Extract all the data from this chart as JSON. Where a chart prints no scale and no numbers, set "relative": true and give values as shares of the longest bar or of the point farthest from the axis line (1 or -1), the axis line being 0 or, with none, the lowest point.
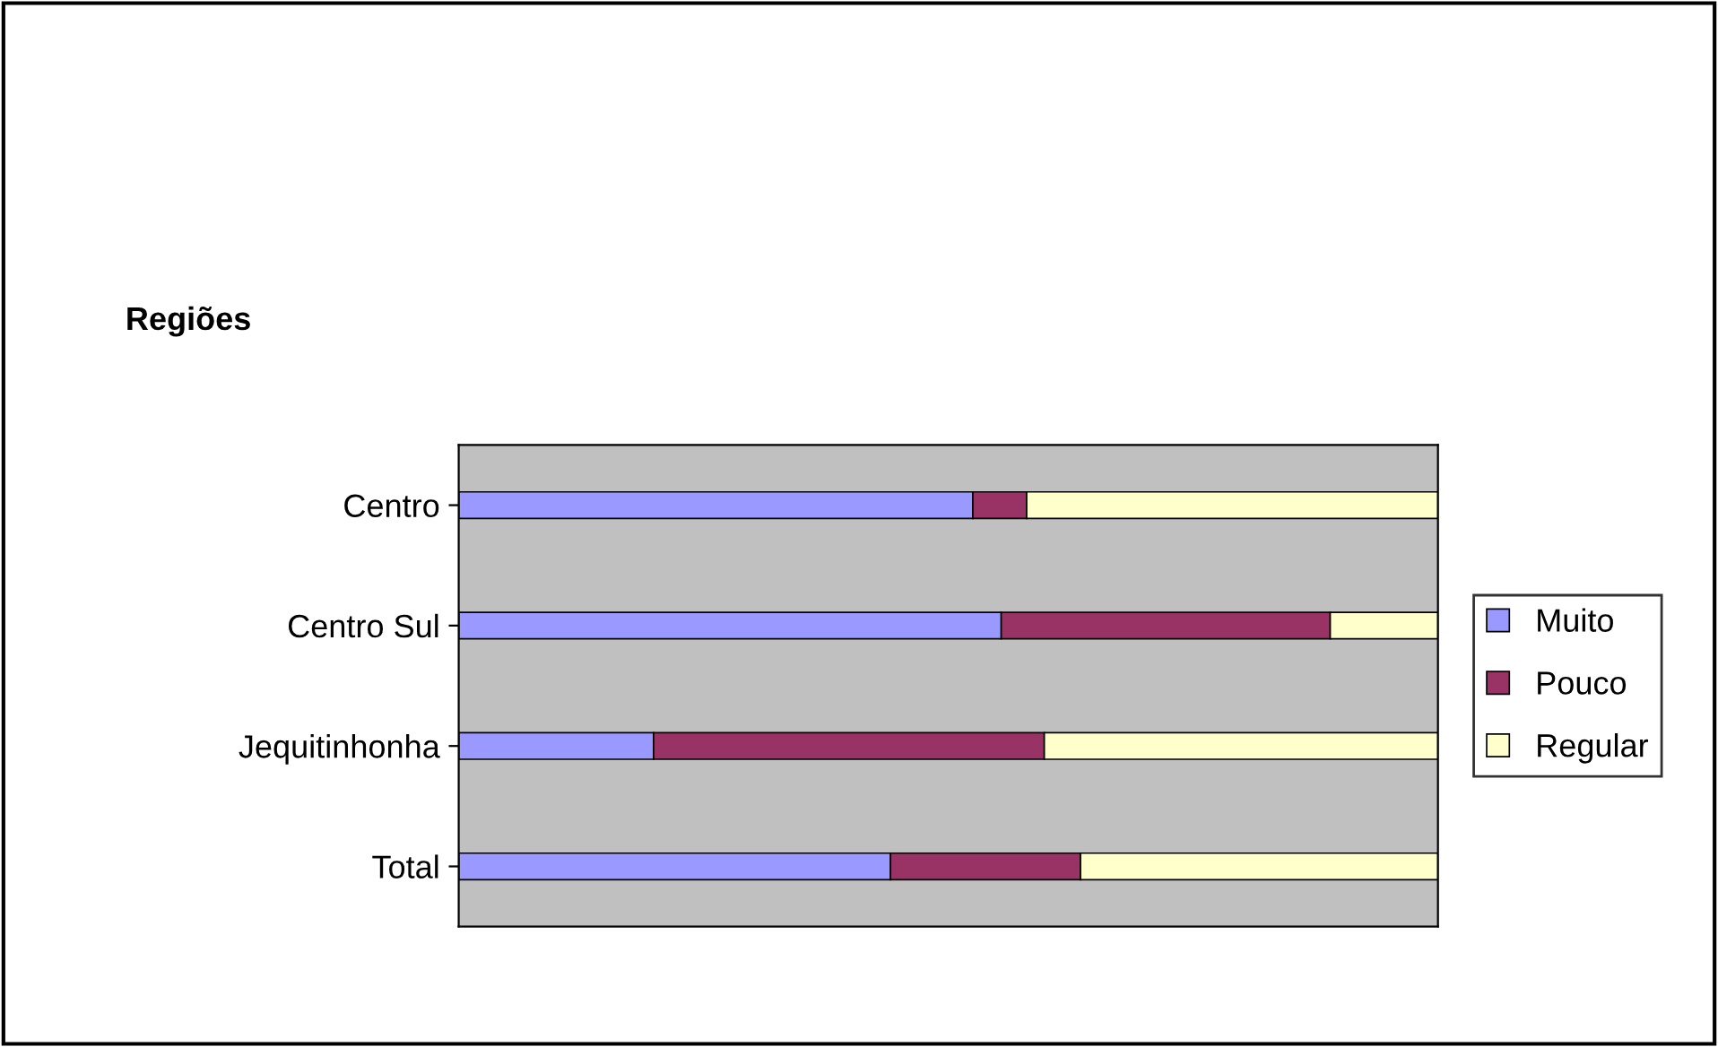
{
  "chart_data": {
    "type": "bar",
    "orientation": "horizontal",
    "stacked": true,
    "relative": true,
    "ylabel": "Regiões",
    "categories": [
      "Centro",
      "Centro Sul",
      "Jequitinhonha",
      "Total"
    ],
    "series": [
      {
        "name": "Muito",
        "color": "#9999ff",
        "values": [
          0.525,
          0.554,
          0.199,
          0.441
        ]
      },
      {
        "name": "Pouco",
        "color": "#993366",
        "values": [
          0.055,
          0.336,
          0.399,
          0.194
        ]
      },
      {
        "name": "Regular",
        "color": "#ffffcc",
        "values": [
          0.42,
          0.11,
          0.402,
          0.365
        ]
      }
    ],
    "legend": "right",
    "grid": false
  }
}
